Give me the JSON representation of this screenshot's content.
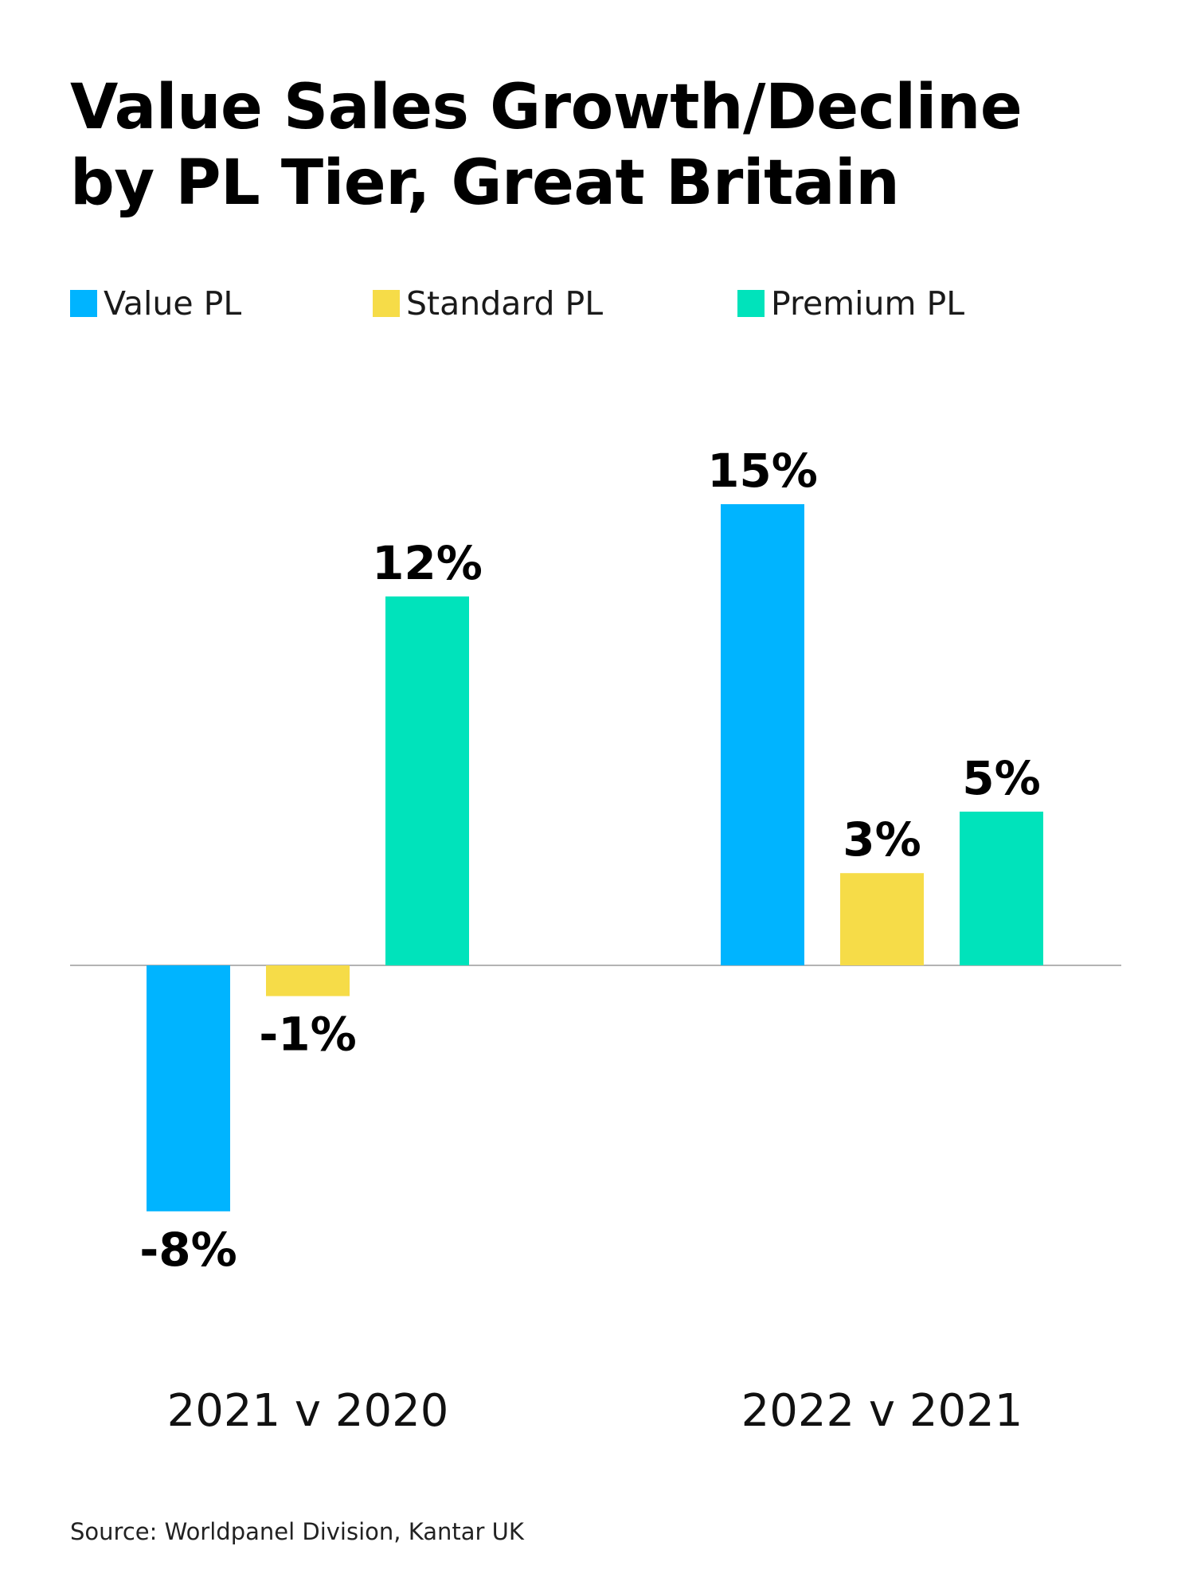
{
  "title_lines": [
    "Value Sales Growth/Decline",
    "by PL Tier, Great Britain"
  ],
  "source": "Source: Worldpanel Division, Kantar UK",
  "chart_data": {
    "type": "bar",
    "categories": [
      "2021 v 2020",
      "2022 v 2021"
    ],
    "series": [
      {
        "name": "Value PL",
        "color": "#00b4ff",
        "values": [
          -8,
          15
        ],
        "labels": [
          "-8%",
          "15%"
        ]
      },
      {
        "name": "Standard PL",
        "color": "#f6dc48",
        "values": [
          -1,
          3
        ],
        "labels": [
          "-1%",
          "3%"
        ]
      },
      {
        "name": "Premium PL",
        "color": "#00e3bb",
        "values": [
          12,
          5
        ],
        "labels": [
          "12%",
          "5%"
        ]
      }
    ],
    "unit": "%",
    "ylim": [
      -8,
      15
    ],
    "legend_position": "top-left",
    "grid": false
  }
}
